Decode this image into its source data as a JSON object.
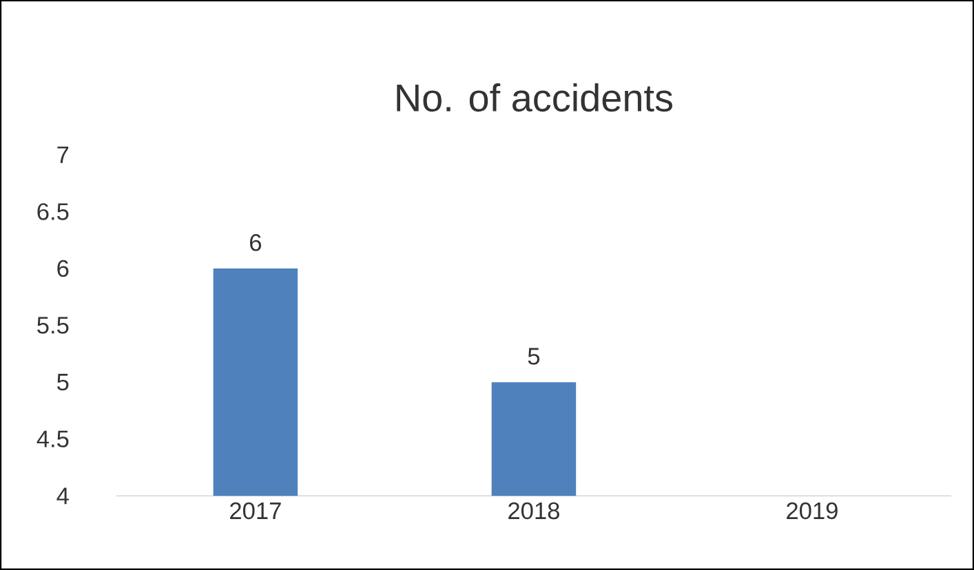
{
  "chart_data": {
    "type": "bar",
    "title": "No. of accidents",
    "categories": [
      "2017",
      "2018",
      "2019"
    ],
    "values": [
      6,
      5,
      4
    ],
    "value_labels": [
      "6",
      "5",
      null
    ],
    "color": "#4f81bd",
    "ylim": [
      4,
      7
    ],
    "yticks": [
      4,
      4.5,
      5,
      5.5,
      6,
      6.5,
      7
    ]
  }
}
